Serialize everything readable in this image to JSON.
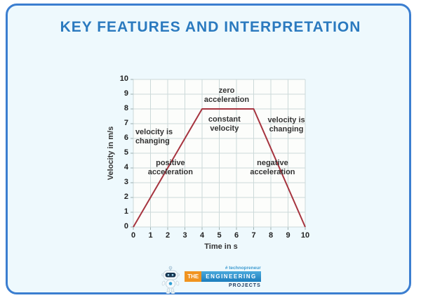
{
  "title": "KEY FEATURES AND INTERPRETATION",
  "colors": {
    "card_border": "#3b7ed0",
    "card_background": "#eef9fd",
    "title_text": "#2b7abf",
    "plot_background": "#fcfdfb",
    "grid_line": "#ccd9d9",
    "line": "#a6343f",
    "annotation_text": "#333333",
    "logo_orange": "#f0941f",
    "logo_blue": "#2e96cf"
  },
  "chart_data": {
    "type": "line",
    "x": [
      0,
      4,
      7,
      10
    ],
    "y": [
      0,
      8,
      8,
      0
    ],
    "title": "",
    "xlabel": "Time in s",
    "ylabel": "Velocity in m/s",
    "xlim": [
      0,
      10
    ],
    "ylim": [
      0,
      10
    ],
    "xticks": [
      0,
      1,
      2,
      3,
      4,
      5,
      6,
      7,
      8,
      9,
      10
    ],
    "yticks": [
      0,
      1,
      2,
      3,
      4,
      5,
      6,
      7,
      8,
      9,
      10
    ],
    "grid": true,
    "legend": false,
    "line_color": "#a6343f",
    "annotations": [
      {
        "lines": [
          "zero",
          "acceleration"
        ],
        "x": 5.43,
        "y": 8.9,
        "align": "center"
      },
      {
        "lines": [
          "constant",
          "velocity"
        ],
        "x": 5.3,
        "y": 6.95,
        "align": "center"
      },
      {
        "lines": [
          "velocity is",
          "changing"
        ],
        "x": 0.12,
        "y": 6.1,
        "align": "left"
      },
      {
        "lines": [
          "velocity is",
          "changing"
        ],
        "x": 8.9,
        "y": 6.9,
        "align": "center"
      },
      {
        "lines": [
          "positive",
          "acceleration"
        ],
        "x": 2.16,
        "y": 4.0,
        "align": "center"
      },
      {
        "lines": [
          "negative",
          "acceleration"
        ],
        "x": 8.1,
        "y": 4.0,
        "align": "center"
      }
    ]
  },
  "logo": {
    "hashtag": "# technopreneur",
    "the": "THE",
    "engineering": "ENGINEERING",
    "projects": "PROJECTS"
  }
}
